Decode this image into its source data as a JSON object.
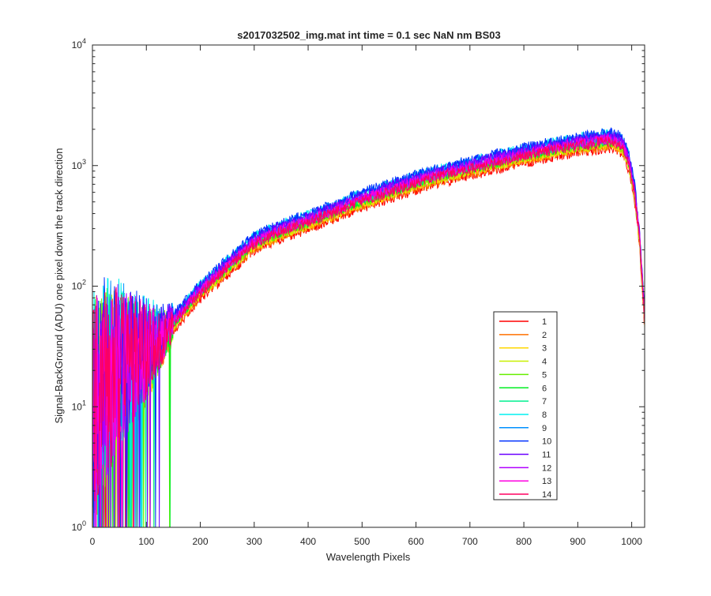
{
  "chart_data": {
    "type": "line",
    "title": "s2017032502_img.mat int time = 0.1 sec  NaN nm BS03",
    "xlabel": "Wavelength Pixels",
    "ylabel": "Signal-BackGround (ADU) one pixel down the track direction",
    "xlim": [
      0,
      1024
    ],
    "ylim": [
      1,
      10000
    ],
    "yscale": "log",
    "grid": false,
    "legend_position": "lower-right",
    "x_ticks": [
      0,
      100,
      200,
      300,
      400,
      500,
      600,
      700,
      800,
      900,
      1000
    ],
    "x_tick_labels": [
      "0",
      "100",
      "200",
      "300",
      "400",
      "500",
      "600",
      "700",
      "800",
      "900",
      "1000"
    ],
    "y_ticks": [
      1,
      10,
      100,
      1000,
      10000
    ],
    "y_tick_labels": [
      {
        "base": "10",
        "exp": "0"
      },
      {
        "base": "10",
        "exp": "1"
      },
      {
        "base": "10",
        "exp": "2"
      },
      {
        "base": "10",
        "exp": "3"
      },
      {
        "base": "10",
        "exp": "4"
      }
    ],
    "envelope": {
      "x": [
        0,
        20,
        50,
        80,
        100,
        130,
        150,
        180,
        200,
        250,
        300,
        350,
        400,
        450,
        500,
        550,
        600,
        650,
        700,
        750,
        800,
        850,
        900,
        930,
        950,
        965,
        975,
        985,
        995,
        1005,
        1015,
        1024
      ],
      "y": [
        10,
        15,
        22,
        26,
        30,
        40,
        52,
        75,
        95,
        150,
        240,
        300,
        360,
        440,
        540,
        640,
        760,
        880,
        1000,
        1130,
        1280,
        1420,
        1560,
        1620,
        1680,
        1680,
        1620,
        1450,
        1100,
        650,
        250,
        55
      ]
    },
    "series": [
      {
        "name": "1",
        "color": "#ff0000",
        "scale": 0.83
      },
      {
        "name": "2",
        "color": "#ff7000",
        "scale": 0.86
      },
      {
        "name": "3",
        "color": "#ffd700",
        "scale": 0.89
      },
      {
        "name": "4",
        "color": "#c8f000",
        "scale": 0.91
      },
      {
        "name": "5",
        "color": "#66ee00",
        "scale": 0.93
      },
      {
        "name": "6",
        "color": "#00ee22",
        "scale": 0.95
      },
      {
        "name": "7",
        "color": "#00f090",
        "scale": 0.98
      },
      {
        "name": "8",
        "color": "#00f0f0",
        "scale": 1.08
      },
      {
        "name": "9",
        "color": "#0090ff",
        "scale": 1.05
      },
      {
        "name": "10",
        "color": "#0030ff",
        "scale": 1.1
      },
      {
        "name": "11",
        "color": "#6a00ff",
        "scale": 1.04
      },
      {
        "name": "12",
        "color": "#b000ff",
        "scale": 1.0
      },
      {
        "name": "13",
        "color": "#ff00e0",
        "scale": 0.97
      },
      {
        "name": "14",
        "color": "#ff0060",
        "scale": 0.94
      }
    ]
  }
}
